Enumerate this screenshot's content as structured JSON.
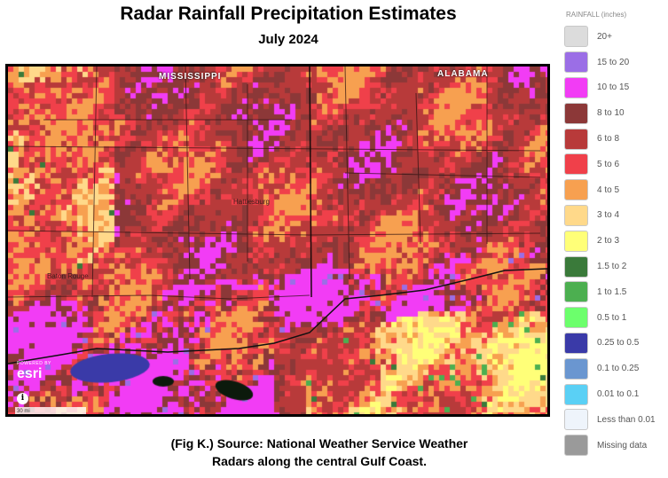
{
  "title": "Radar Rainfall Precipitation Estimates",
  "subtitle": "July 2024",
  "map": {
    "state_labels": [
      "MISSISSIPPI",
      "ALABAMA"
    ],
    "city_labels": [
      "Baton Rouge",
      "Hattiesburg"
    ],
    "credit_powered": "POWERED BY",
    "credit_logo": "esri",
    "scale_text": "30 mi",
    "info_icon": "info-icon",
    "colors": {
      "gt20": "#dcdcdc",
      "15_20": "#9b6ee6",
      "10_15": "#f23cf5",
      "8_10": "#8c3838",
      "6_8": "#b83a3a",
      "5_6": "#f0404a",
      "4_5": "#f7a050",
      "3_4": "#ffd98a",
      "2_3": "#ffff78",
      "1_5_2": "#3a7a3a",
      "1_1_5": "#4caf50",
      "0_5_1": "#6cff6c",
      "water": "#3a3aa8"
    }
  },
  "caption_line1": "(Fig K.) Source: National Weather Service Weather",
  "caption_line2": "Radars along the central Gulf Coast.",
  "legend": {
    "title": "RAINFALL (inches)",
    "items": [
      {
        "label": "20+",
        "color": "#dcdcdc"
      },
      {
        "label": "15 to 20",
        "color": "#9b6ee6"
      },
      {
        "label": "10 to 15",
        "color": "#f23cf5"
      },
      {
        "label": "8 to 10",
        "color": "#8c3838"
      },
      {
        "label": "6 to 8",
        "color": "#b83a3a"
      },
      {
        "label": "5 to 6",
        "color": "#f0404a"
      },
      {
        "label": "4 to 5",
        "color": "#f7a050"
      },
      {
        "label": "3 to 4",
        "color": "#ffd98a"
      },
      {
        "label": "2 to 3",
        "color": "#ffff78"
      },
      {
        "label": "1.5 to 2",
        "color": "#3a7a3a"
      },
      {
        "label": "1 to 1.5",
        "color": "#4caf50"
      },
      {
        "label": "0.5 to 1",
        "color": "#6cff6c"
      },
      {
        "label": "0.25 to 0.5",
        "color": "#3a3aa8"
      },
      {
        "label": "0.1 to 0.25",
        "color": "#6a96d0"
      },
      {
        "label": "0.01 to 0.1",
        "color": "#5ad0f5"
      },
      {
        "label": "Less than 0.01",
        "color": "#eef4fb"
      },
      {
        "label": "Missing data",
        "color": "#9a9a9a"
      }
    ]
  }
}
